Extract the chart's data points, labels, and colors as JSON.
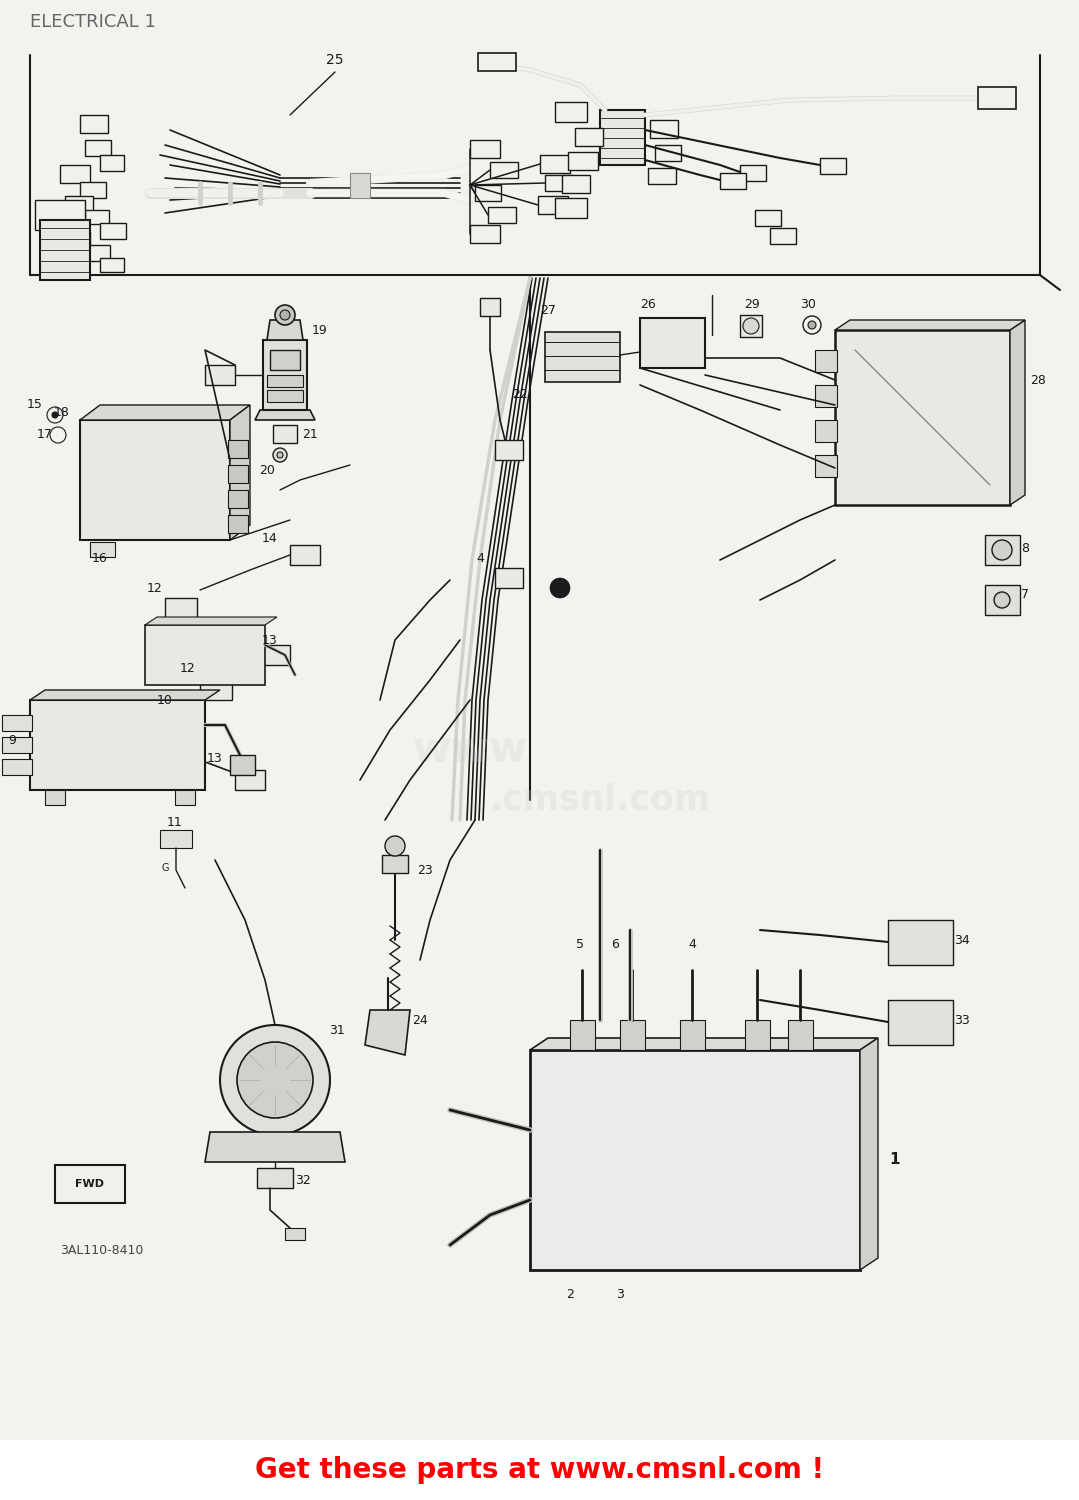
{
  "title": "ELECTRICAL 1",
  "footer": "Get these parts at www.cmsnl.com !",
  "footer_color": "#ff0000",
  "part_number": "3AL110-8410",
  "bg_color": "#f2f2ee",
  "diagram_bg": "#f8f8f5",
  "title_color": "#555555",
  "line_color": "#1a1a1a",
  "watermark_color": "#c8c8c8",
  "title_fontsize": 11,
  "footer_fontsize": 20,
  "fig_width": 10.79,
  "fig_height": 15.0,
  "dpi": 100
}
